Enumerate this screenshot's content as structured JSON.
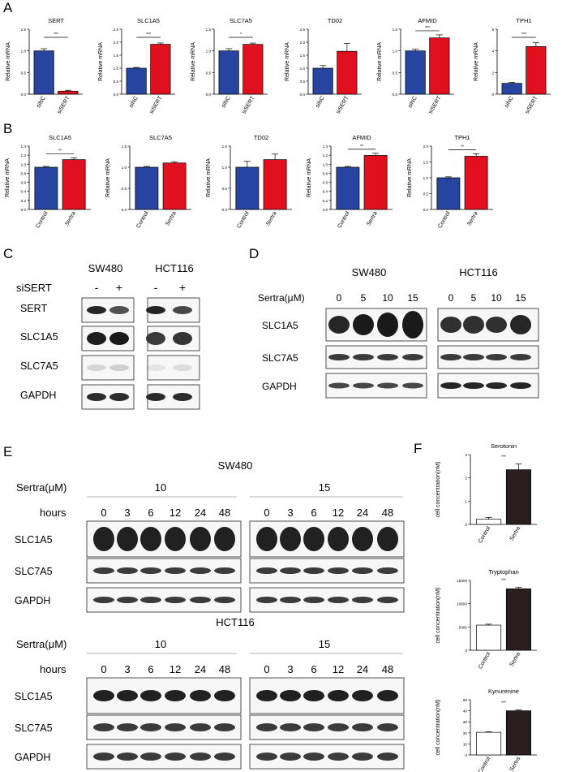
{
  "panels": {
    "A": "A",
    "B": "B",
    "C": "C",
    "D": "D",
    "E": "E",
    "F": "F"
  },
  "panel_a": {
    "ylabel": "Relative mRNA",
    "charts": [
      {
        "title": "SERT",
        "categories": [
          "siNC",
          "siSERT"
        ],
        "values": [
          1.0,
          0.07
        ],
        "errors": [
          0.05,
          0.02
        ],
        "ylim": [
          0,
          1.5
        ],
        "yticks": [
          "0.0",
          "0.5",
          "1.0",
          "1.5"
        ],
        "sig": "***"
      },
      {
        "title": "SLC1A5",
        "categories": [
          "siNC",
          "siSERT"
        ],
        "values": [
          1.0,
          1.92
        ],
        "errors": [
          0.03,
          0.05
        ],
        "ylim": [
          0,
          2.5
        ],
        "yticks": [
          "0.0",
          "0.5",
          "1.0",
          "1.5",
          "2.0",
          "2.5"
        ],
        "sig": "***"
      },
      {
        "title": "SLC7A5",
        "categories": [
          "siNC",
          "siSERT"
        ],
        "values": [
          1.0,
          1.15
        ],
        "errors": [
          0.05,
          0.03
        ],
        "ylim": [
          0,
          1.5
        ],
        "yticks": [
          "0.0",
          "0.5",
          "1.0",
          "1.5"
        ],
        "sig": "*"
      },
      {
        "title": "TD02",
        "categories": [
          "siNC",
          "siSERT"
        ],
        "values": [
          1.0,
          1.65
        ],
        "errors": [
          0.1,
          0.3
        ],
        "ylim": [
          0,
          2.5
        ],
        "yticks": [
          "0.0",
          "0.5",
          "1.0",
          "1.5",
          "2.0",
          "2.5"
        ],
        "sig": ""
      },
      {
        "title": "AFMID",
        "categories": [
          "siNC",
          "siSERT"
        ],
        "values": [
          1.0,
          1.3
        ],
        "errors": [
          0.04,
          0.07
        ],
        "ylim": [
          0,
          1.5
        ],
        "yticks": [
          "0.0",
          "0.5",
          "1.0",
          "1.5"
        ],
        "sig": "***"
      },
      {
        "title": "TPH1",
        "categories": [
          "siNC",
          "siSERT"
        ],
        "values": [
          1.0,
          4.4
        ],
        "errors": [
          0.1,
          0.35
        ],
        "ylim": [
          0,
          6
        ],
        "yticks": [
          "0",
          "2",
          "4",
          "6"
        ],
        "sig": "***"
      }
    ]
  },
  "panel_b": {
    "ylabel": "Relative mRNA",
    "charts": [
      {
        "title": "SLC1A5",
        "categories": [
          "Control",
          "Sertra"
        ],
        "values": [
          1.0,
          1.18
        ],
        "errors": [
          0.02,
          0.04
        ],
        "ylim": [
          0,
          1.5
        ],
        "yticks": [
          "0.0",
          "0.2",
          "0.4",
          "0.6",
          "0.8",
          "1.0",
          "1.2",
          "1.4"
        ],
        "sig": "**"
      },
      {
        "title": "SLC7A5",
        "categories": [
          "Control",
          "Sertra"
        ],
        "values": [
          1.0,
          1.1
        ],
        "errors": [
          0.02,
          0.03
        ],
        "ylim": [
          0,
          1.5
        ],
        "yticks": [
          "0.0",
          "0.5",
          "1.0",
          "1.5"
        ],
        "sig": ""
      },
      {
        "title": "TD02",
        "categories": [
          "Control",
          "Sertra"
        ],
        "values": [
          1.0,
          1.18
        ],
        "errors": [
          0.14,
          0.13
        ],
        "ylim": [
          0,
          1.5
        ],
        "yticks": [
          "0.0",
          "0.5",
          "1.0",
          "1.5"
        ],
        "sig": ""
      },
      {
        "title": "AFMID",
        "categories": [
          "Control",
          "Sertra"
        ],
        "values": [
          1.0,
          1.28
        ],
        "errors": [
          0.02,
          0.05
        ],
        "ylim": [
          0,
          1.5
        ],
        "yticks": [
          "0.0",
          "0.2",
          "0.4",
          "0.6",
          "0.8",
          "1.0",
          "1.2",
          "1.4"
        ],
        "sig": "**"
      },
      {
        "title": "TPH1",
        "categories": [
          "Control",
          "Sertra"
        ],
        "values": [
          1.0,
          1.68
        ],
        "errors": [
          0.03,
          0.08
        ],
        "ylim": [
          0,
          2.0
        ],
        "yticks": [
          "0.0",
          "0.5",
          "1.0",
          "1.5",
          "2.0"
        ],
        "sig": "**"
      }
    ]
  },
  "panel_c": {
    "cell_lines": [
      "SW480",
      "HCT116"
    ],
    "treatment_label": "siSERT",
    "signs": [
      "-",
      "+",
      "-",
      "+"
    ],
    "rows": [
      "SERT",
      "SLC1A5",
      "SLC7A5",
      "GAPDH"
    ]
  },
  "panel_d": {
    "cell_lines": [
      "SW480",
      "HCT116"
    ],
    "treatment_label": "Sertra(μM)",
    "doses": [
      "0",
      "5",
      "10",
      "15",
      "0",
      "5",
      "10",
      "15"
    ],
    "rows": [
      "SLC1A5",
      "SLC7A5",
      "GAPDH"
    ]
  },
  "panel_e": {
    "blocks": [
      {
        "cell_line": "SW480",
        "treatment_label": "Sertra(μM)",
        "doses": [
          "10",
          "15"
        ],
        "hours_label": "hours",
        "hours": [
          "0",
          "3",
          "6",
          "12",
          "24",
          "48",
          "0",
          "3",
          "6",
          "12",
          "24",
          "48"
        ],
        "rows": [
          "SLC1A5",
          "SLC7A5",
          "GAPDH"
        ]
      },
      {
        "cell_line": "HCT116",
        "treatment_label": "Sertra(μM)",
        "doses": [
          "10",
          "15"
        ],
        "hours_label": "hours",
        "hours": [
          "0",
          "3",
          "6",
          "12",
          "24",
          "48",
          "0",
          "3",
          "6",
          "12",
          "24",
          "48"
        ],
        "rows": [
          "SLC1A5",
          "SLC7A5",
          "GAPDH"
        ]
      }
    ]
  },
  "panel_f": {
    "ylabel": "cell concentration(nM)",
    "charts": [
      {
        "title": "Serotonin",
        "categories": [
          "Control",
          "Sertra"
        ],
        "values": [
          0.22,
          2.35
        ],
        "errors": [
          0.08,
          0.25
        ],
        "ylim": [
          0,
          3
        ],
        "yticks": [
          "0",
          "1",
          "2",
          "3"
        ],
        "sig": "***"
      },
      {
        "title": "Tryptophan",
        "categories": [
          "Control",
          "Sertra"
        ],
        "values": [
          5400,
          13200
        ],
        "errors": [
          200,
          300
        ],
        "ylim": [
          0,
          15000
        ],
        "yticks": [
          "0",
          "5000",
          "10000",
          "15000"
        ],
        "sig": "***"
      },
      {
        "title": "Kynurenine",
        "categories": [
          "Control",
          "Sertra"
        ],
        "values": [
          20.5,
          40
        ],
        "errors": [
          0.5,
          0.8
        ],
        "ylim": [
          0,
          50
        ],
        "yticks": [
          "0",
          "10",
          "20",
          "30",
          "40",
          "50"
        ],
        "sig": "***"
      }
    ]
  },
  "chart_data": [
    {
      "type": "bar",
      "title": "SERT",
      "categories": [
        "siNC",
        "siSERT"
      ],
      "values": [
        1.0,
        0.07
      ],
      "ylabel": "Relative mRNA",
      "ylim": [
        0,
        1.5
      ]
    },
    {
      "type": "bar",
      "title": "SLC1A5",
      "categories": [
        "siNC",
        "siSERT"
      ],
      "values": [
        1.0,
        1.92
      ],
      "ylabel": "Relative mRNA",
      "ylim": [
        0,
        2.5
      ]
    },
    {
      "type": "bar",
      "title": "SLC7A5",
      "categories": [
        "siNC",
        "siSERT"
      ],
      "values": [
        1.0,
        1.15
      ],
      "ylabel": "Relative mRNA",
      "ylim": [
        0,
        1.5
      ]
    },
    {
      "type": "bar",
      "title": "TD02",
      "categories": [
        "siNC",
        "siSERT"
      ],
      "values": [
        1.0,
        1.65
      ],
      "ylabel": "Relative mRNA",
      "ylim": [
        0,
        2.5
      ]
    },
    {
      "type": "bar",
      "title": "AFMID",
      "categories": [
        "siNC",
        "siSERT"
      ],
      "values": [
        1.0,
        1.3
      ],
      "ylabel": "Relative mRNA",
      "ylim": [
        0,
        1.5
      ]
    },
    {
      "type": "bar",
      "title": "TPH1",
      "categories": [
        "siNC",
        "siSERT"
      ],
      "values": [
        1.0,
        4.4
      ],
      "ylabel": "Relative mRNA",
      "ylim": [
        0,
        6
      ]
    },
    {
      "type": "bar",
      "title": "SLC1A5",
      "categories": [
        "Control",
        "Sertra"
      ],
      "values": [
        1.0,
        1.18
      ],
      "ylabel": "Relative mRNA",
      "ylim": [
        0,
        1.5
      ]
    },
    {
      "type": "bar",
      "title": "SLC7A5",
      "categories": [
        "Control",
        "Sertra"
      ],
      "values": [
        1.0,
        1.1
      ],
      "ylabel": "Relative mRNA",
      "ylim": [
        0,
        1.5
      ]
    },
    {
      "type": "bar",
      "title": "TD02",
      "categories": [
        "Control",
        "Sertra"
      ],
      "values": [
        1.0,
        1.18
      ],
      "ylabel": "Relative mRNA",
      "ylim": [
        0,
        1.5
      ]
    },
    {
      "type": "bar",
      "title": "AFMID",
      "categories": [
        "Control",
        "Sertra"
      ],
      "values": [
        1.0,
        1.28
      ],
      "ylabel": "Relative mRNA",
      "ylim": [
        0,
        1.5
      ]
    },
    {
      "type": "bar",
      "title": "TPH1",
      "categories": [
        "Control",
        "Sertra"
      ],
      "values": [
        1.0,
        1.68
      ],
      "ylabel": "Relative mRNA",
      "ylim": [
        0,
        2.0
      ]
    },
    {
      "type": "bar",
      "title": "Serotonin",
      "categories": [
        "Control",
        "Sertra"
      ],
      "values": [
        0.22,
        2.35
      ],
      "ylabel": "cell concentration(nM)",
      "ylim": [
        0,
        3
      ]
    },
    {
      "type": "bar",
      "title": "Tryptophan",
      "categories": [
        "Control",
        "Sertra"
      ],
      "values": [
        5400,
        13200
      ],
      "ylabel": "cell concentration(nM)",
      "ylim": [
        0,
        15000
      ]
    },
    {
      "type": "bar",
      "title": "Kynurenine",
      "categories": [
        "Control",
        "Sertra"
      ],
      "values": [
        20.5,
        40
      ],
      "ylabel": "cell concentration(nM)",
      "ylim": [
        0,
        50
      ]
    }
  ],
  "colors": {
    "control_bar": "#2744a0",
    "treated_bar": "#e0101e",
    "f_control": "#ffffff",
    "f_treated": "#2a1f1e",
    "band": "#1a1a1a"
  }
}
